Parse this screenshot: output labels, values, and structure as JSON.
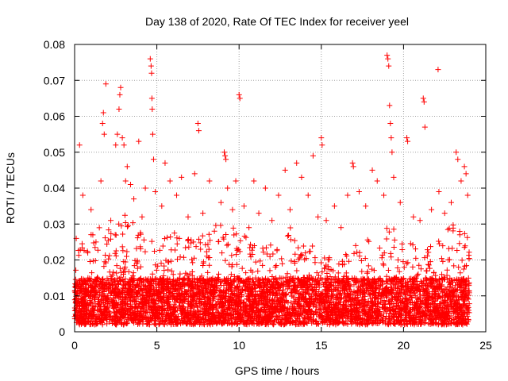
{
  "chart_data": {
    "type": "scatter",
    "title": "Day 138 of 2020, Rate Of TEC Index for receiver yeel",
    "xlabel": "GPS time / hours",
    "ylabel": "ROTI / TECUs",
    "xlim": [
      0,
      25
    ],
    "ylim": [
      0,
      0.08
    ],
    "x_ticks": [
      0,
      5,
      10,
      15,
      20,
      25
    ],
    "x_tick_labels": [
      "0",
      "5",
      "10",
      "15",
      "20",
      "25"
    ],
    "y_ticks": [
      0,
      0.01,
      0.02,
      0.03,
      0.04,
      0.05,
      0.06,
      0.07,
      0.08
    ],
    "y_tick_labels": [
      "0",
      "0.01",
      "0.02",
      "0.03",
      "0.04",
      "0.05",
      "0.06",
      "0.07",
      "0.08"
    ],
    "grid": true,
    "marker": "+",
    "marker_color": "#ff0000",
    "series": [
      {
        "name": "ROTI",
        "points": [
          [
            0.1,
            0.026
          ],
          [
            0.3,
            0.052
          ],
          [
            0.5,
            0.038
          ],
          [
            0.8,
            0.022
          ],
          [
            1.0,
            0.034
          ],
          [
            1.3,
            0.025
          ],
          [
            1.6,
            0.042
          ],
          [
            1.7,
            0.058
          ],
          [
            1.75,
            0.061
          ],
          [
            1.8,
            0.055
          ],
          [
            1.9,
            0.069
          ],
          [
            2.2,
            0.031
          ],
          [
            2.5,
            0.052
          ],
          [
            2.6,
            0.055
          ],
          [
            2.7,
            0.062
          ],
          [
            2.75,
            0.066
          ],
          [
            2.8,
            0.068
          ],
          [
            2.9,
            0.054
          ],
          [
            3.0,
            0.052
          ],
          [
            3.1,
            0.042
          ],
          [
            3.2,
            0.046
          ],
          [
            3.4,
            0.041
          ],
          [
            3.6,
            0.037
          ],
          [
            3.9,
            0.053
          ],
          [
            4.1,
            0.032
          ],
          [
            4.3,
            0.04
          ],
          [
            4.6,
            0.076
          ],
          [
            4.65,
            0.074
          ],
          [
            4.68,
            0.072
          ],
          [
            4.7,
            0.065
          ],
          [
            4.72,
            0.062
          ],
          [
            4.75,
            0.055
          ],
          [
            4.8,
            0.048
          ],
          [
            4.9,
            0.039
          ],
          [
            5.3,
            0.035
          ],
          [
            5.5,
            0.047
          ],
          [
            5.8,
            0.042
          ],
          [
            6.2,
            0.038
          ],
          [
            6.5,
            0.043
          ],
          [
            6.9,
            0.032
          ],
          [
            7.3,
            0.044
          ],
          [
            7.5,
            0.058
          ],
          [
            7.55,
            0.056
          ],
          [
            7.8,
            0.033
          ],
          [
            8.2,
            0.042
          ],
          [
            8.5,
            0.028
          ],
          [
            8.9,
            0.036
          ],
          [
            9.1,
            0.05
          ],
          [
            9.15,
            0.049
          ],
          [
            9.2,
            0.048
          ],
          [
            9.3,
            0.04
          ],
          [
            9.6,
            0.034
          ],
          [
            9.8,
            0.042
          ],
          [
            10.0,
            0.066
          ],
          [
            10.05,
            0.065
          ],
          [
            10.3,
            0.035
          ],
          [
            10.6,
            0.029
          ],
          [
            10.9,
            0.042
          ],
          [
            11.2,
            0.033
          ],
          [
            11.6,
            0.04
          ],
          [
            12.0,
            0.031
          ],
          [
            12.4,
            0.038
          ],
          [
            12.8,
            0.045
          ],
          [
            13.1,
            0.034
          ],
          [
            13.5,
            0.047
          ],
          [
            13.8,
            0.043
          ],
          [
            14.2,
            0.038
          ],
          [
            14.5,
            0.049
          ],
          [
            14.8,
            0.032
          ],
          [
            15.0,
            0.054
          ],
          [
            15.05,
            0.052
          ],
          [
            15.3,
            0.031
          ],
          [
            15.8,
            0.035
          ],
          [
            16.2,
            0.029
          ],
          [
            16.6,
            0.038
          ],
          [
            16.9,
            0.047
          ],
          [
            16.95,
            0.046
          ],
          [
            17.3,
            0.039
          ],
          [
            17.7,
            0.035
          ],
          [
            18.1,
            0.045
          ],
          [
            18.4,
            0.042
          ],
          [
            18.8,
            0.038
          ],
          [
            19.0,
            0.077
          ],
          [
            19.05,
            0.076
          ],
          [
            19.1,
            0.074
          ],
          [
            19.15,
            0.063
          ],
          [
            19.2,
            0.058
          ],
          [
            19.25,
            0.054
          ],
          [
            19.3,
            0.05
          ],
          [
            19.4,
            0.043
          ],
          [
            19.8,
            0.036
          ],
          [
            20.2,
            0.054
          ],
          [
            20.25,
            0.053
          ],
          [
            20.6,
            0.032
          ],
          [
            21.0,
            0.031
          ],
          [
            21.2,
            0.065
          ],
          [
            21.25,
            0.064
          ],
          [
            21.3,
            0.057
          ],
          [
            21.7,
            0.034
          ],
          [
            22.1,
            0.073
          ],
          [
            22.15,
            0.039
          ],
          [
            22.5,
            0.033
          ],
          [
            22.9,
            0.036
          ],
          [
            23.2,
            0.05
          ],
          [
            23.3,
            0.048
          ],
          [
            23.5,
            0.042
          ],
          [
            23.7,
            0.046
          ],
          [
            23.8,
            0.044
          ],
          [
            23.9,
            0.038
          ]
        ]
      }
    ],
    "dense_band": {
      "description": "Very dense cluster of ROTI points across all 24 hours",
      "x_range": [
        0,
        24
      ],
      "typical_range": [
        0.002,
        0.015
      ],
      "upper_envelope_by_hour": [
        [
          0,
          0.022
        ],
        [
          1,
          0.028
        ],
        [
          2,
          0.03
        ],
        [
          3,
          0.034
        ],
        [
          4,
          0.03
        ],
        [
          5,
          0.026
        ],
        [
          6,
          0.028
        ],
        [
          7,
          0.026
        ],
        [
          8,
          0.028
        ],
        [
          9,
          0.032
        ],
        [
          10,
          0.03
        ],
        [
          11,
          0.028
        ],
        [
          12,
          0.024
        ],
        [
          13,
          0.03
        ],
        [
          14,
          0.026
        ],
        [
          15,
          0.022
        ],
        [
          16,
          0.02
        ],
        [
          17,
          0.024
        ],
        [
          18,
          0.026
        ],
        [
          19,
          0.03
        ],
        [
          20,
          0.028
        ],
        [
          21,
          0.022
        ],
        [
          22,
          0.026
        ],
        [
          23,
          0.03
        ],
        [
          24,
          0.028
        ]
      ]
    }
  }
}
